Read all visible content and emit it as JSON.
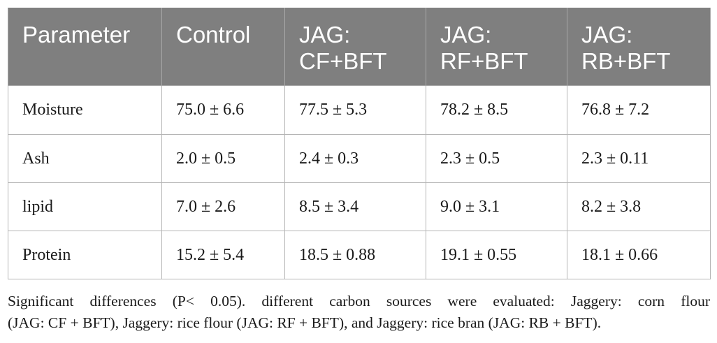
{
  "table": {
    "headers": [
      [
        "Parameter"
      ],
      [
        "Control"
      ],
      [
        "JAG:",
        "CF+BFT"
      ],
      [
        "JAG:",
        "RF+BFT"
      ],
      [
        "JAG:",
        "RB+BFT"
      ]
    ],
    "rows": [
      [
        "Moisture",
        "75.0 ± 6.6",
        "77.5 ± 5.3",
        "78.2 ± 8.5",
        "76.8 ± 7.2"
      ],
      [
        "Ash",
        "2.0 ± 0.5",
        "2.4 ± 0.3",
        "2.3 ± 0.5",
        "2.3 ± 0.11"
      ],
      [
        "lipid",
        "7.0 ± 2.6",
        "8.5 ± 3.4",
        "9.0 ± 3.1",
        "8.2 ± 3.8"
      ],
      [
        "Protein",
        "15.2 ± 5.4",
        "18.5 ± 0.88",
        "19.1 ± 0.55",
        "18.1 ± 0.66"
      ]
    ]
  },
  "footnote": {
    "line1": "Significant differences (P< 0.05). different carbon sources were evaluated: Jaggery: corn flour",
    "line2": "(JAG: CF + BFT), Jaggery: rice flour (JAG: RF + BFT), and Jaggery: rice bran (JAG: RB + BFT)."
  }
}
